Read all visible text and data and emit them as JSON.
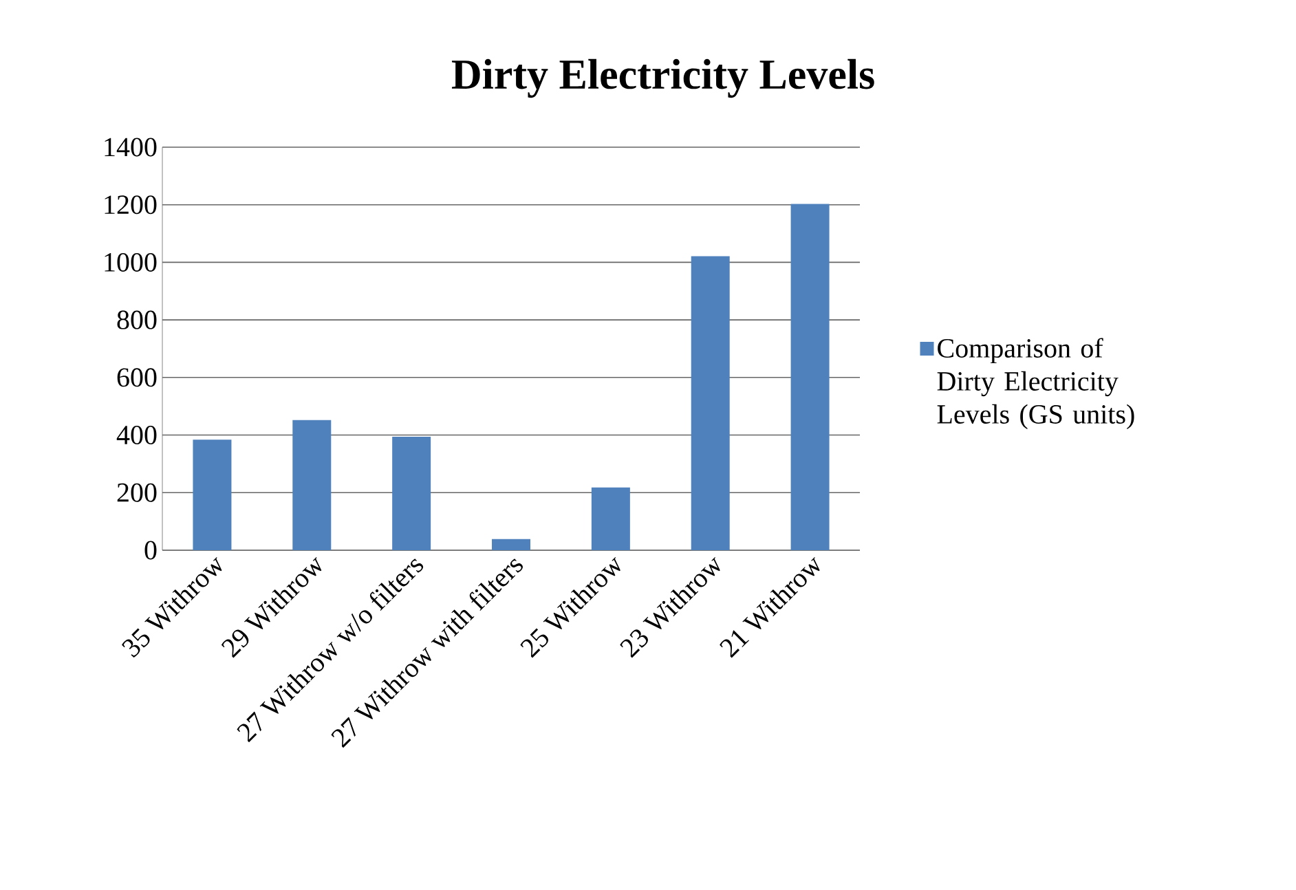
{
  "chart_data": {
    "type": "bar",
    "title": "Dirty Electricity Levels",
    "categories": [
      "35 Withrow",
      "29 Withrow",
      "27 Withrow w/o filters",
      "27 Withrow with filters",
      "25 Withrow",
      "23 Withrow",
      "21 Withrow"
    ],
    "series": [
      {
        "name": "Comparison of Dirty Electricity  Levels (GS units)",
        "color": "#4f81bd",
        "values": [
          384,
          452,
          394,
          39,
          218,
          1021,
          1203
        ]
      }
    ],
    "ylim": [
      0,
      1400
    ],
    "yticks": [
      0,
      200,
      400,
      600,
      800,
      1000,
      1200,
      1400
    ],
    "grid": "y",
    "legend": "right"
  }
}
